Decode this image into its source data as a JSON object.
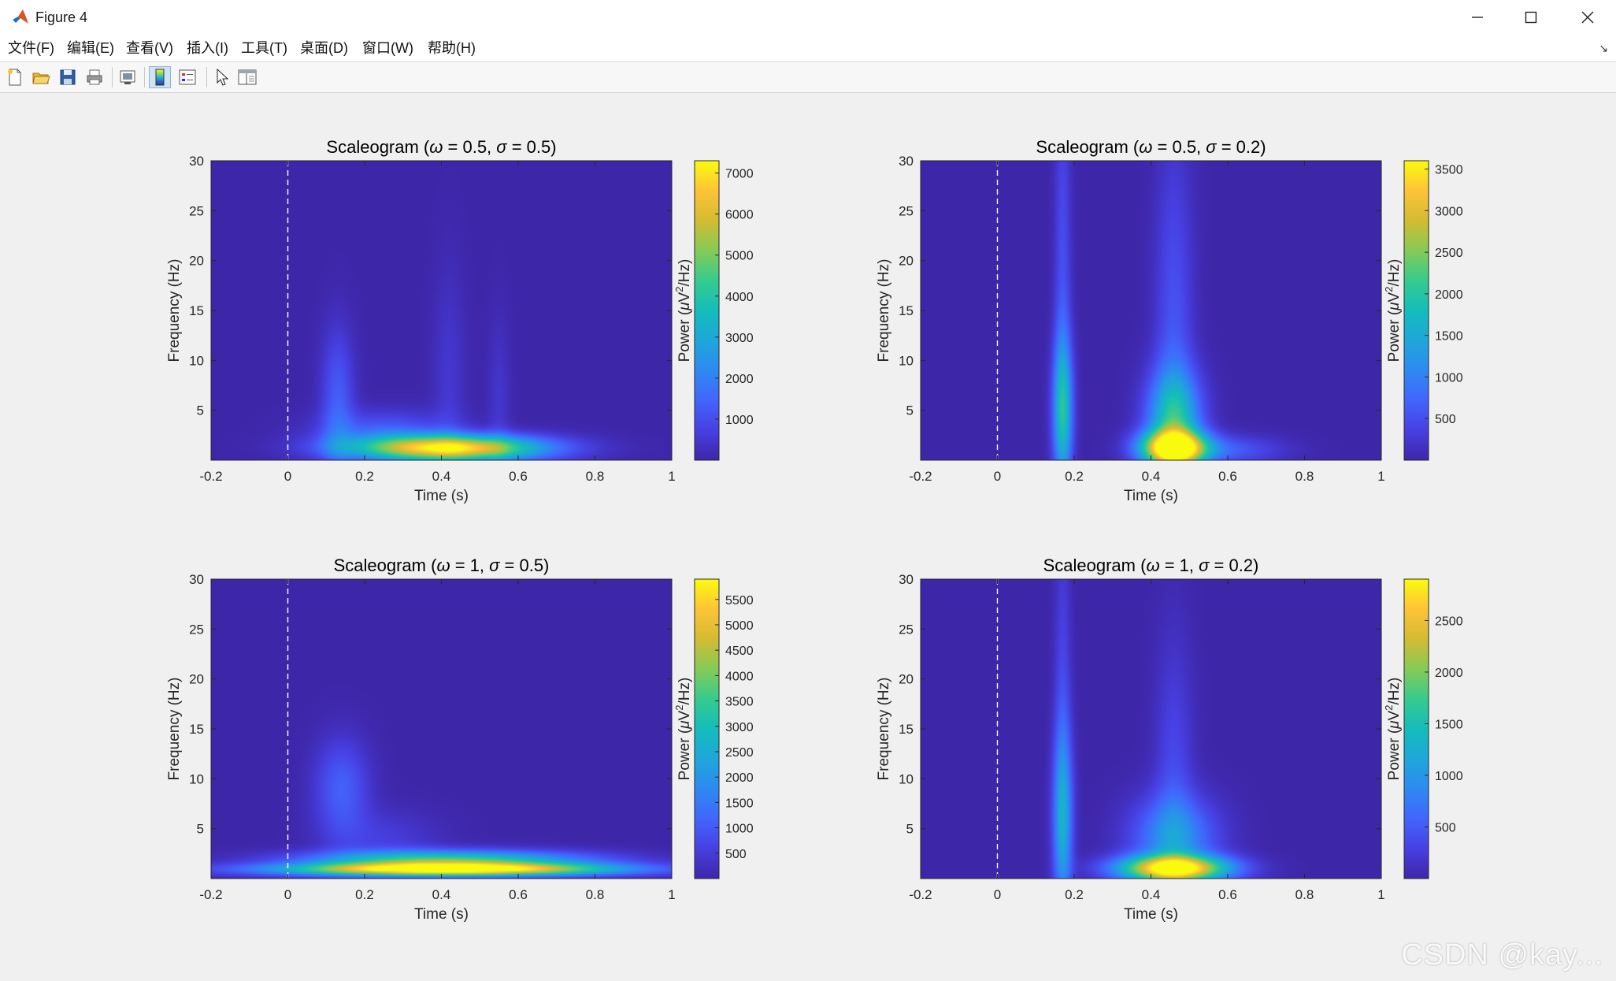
{
  "window": {
    "title": "Figure 4"
  },
  "menu": [
    {
      "id": "file",
      "label": "文件(F)"
    },
    {
      "id": "edit",
      "label": "编辑(E)"
    },
    {
      "id": "view",
      "label": "查看(V)"
    },
    {
      "id": "insert",
      "label": "插入(I)"
    },
    {
      "id": "tools",
      "label": "工具(T)"
    },
    {
      "id": "desktop",
      "label": "桌面(D)"
    },
    {
      "id": "window",
      "label": "窗口(W)"
    },
    {
      "id": "help",
      "label": "帮助(H)"
    }
  ],
  "toolbar": [
    {
      "id": "new-figure",
      "icon": "new-file-icon"
    },
    {
      "id": "open-file",
      "icon": "open-folder-icon"
    },
    {
      "id": "save-figure",
      "icon": "save-icon"
    },
    {
      "id": "print-figure",
      "icon": "print-icon"
    },
    {
      "id": "link-plot",
      "icon": "link-plot-icon"
    },
    {
      "id": "insert-colorbar",
      "icon": "colorbar-icon",
      "active": true
    },
    {
      "id": "insert-legend",
      "icon": "legend-icon"
    },
    {
      "id": "edit-plot",
      "icon": "arrow-cursor-icon"
    },
    {
      "id": "property-inspector",
      "icon": "panel-icon"
    }
  ],
  "watermark": "CSDN @kay...",
  "chart_data": [
    {
      "type": "heatmap",
      "title_prefix": "Scaleogram (",
      "omega_symbol": "ω",
      "omega": "0.5",
      "sigma_symbol": "σ",
      "sigma": "0.5",
      "xlabel": "Time (s)",
      "ylabel": "Frequency (Hz)",
      "xlim": [
        -0.2,
        1
      ],
      "ylim": [
        0,
        30
      ],
      "xticks": [
        "-0.2",
        "0",
        "0.2",
        "0.4",
        "0.6",
        "0.8",
        "1"
      ],
      "yticks": [
        "5",
        "10",
        "15",
        "20",
        "25",
        "30"
      ],
      "stimulus_onset": 0,
      "colorbar": {
        "label_prefix": "Power (",
        "mu": "μ",
        "unit_base": "V",
        "sup": "2",
        "unit_tail": "/Hz)",
        "ticks": [
          1000,
          2000,
          3000,
          4000,
          5000,
          6000,
          7000
        ],
        "min": 0,
        "max": 7300,
        "colormap": "parula"
      },
      "features": [
        {
          "t": 0.42,
          "f": 1.2,
          "power": 7100,
          "t_spread": 0.17,
          "f_spread": 0.9
        },
        {
          "t": 0.25,
          "f": 2.8,
          "power": 1300,
          "t_spread": 0.12,
          "f_spread": 1.5
        },
        {
          "t": 0.13,
          "f": 6,
          "power": 1300,
          "t_spread": 0.03,
          "f_spread": 5
        },
        {
          "t": 0.42,
          "f": 8,
          "power": 500,
          "t_spread": 0.03,
          "f_spread": 8
        },
        {
          "t": 0.55,
          "f": 6,
          "power": 450,
          "t_spread": 0.02,
          "f_spread": 6
        }
      ]
    },
    {
      "type": "heatmap",
      "title_prefix": "Scaleogram (",
      "omega_symbol": "ω",
      "omega": "0.5",
      "sigma_symbol": "σ",
      "sigma": "0.2",
      "xlabel": "Time (s)",
      "ylabel": "Frequency (Hz)",
      "xlim": [
        -0.2,
        1
      ],
      "ylim": [
        0,
        30
      ],
      "xticks": [
        "-0.2",
        "0",
        "0.2",
        "0.4",
        "0.6",
        "0.8",
        "1"
      ],
      "yticks": [
        "5",
        "10",
        "15",
        "20",
        "25",
        "30"
      ],
      "stimulus_onset": 0,
      "colorbar": {
        "label_prefix": "Power (",
        "mu": "μ",
        "unit_base": "V",
        "sup": "2",
        "unit_tail": "/Hz)",
        "ticks": [
          500,
          1000,
          1500,
          2000,
          2500,
          3000,
          3500
        ],
        "min": 0,
        "max": 3600,
        "colormap": "parula"
      },
      "features": [
        {
          "t": 0.46,
          "f": 1.2,
          "power": 3500,
          "t_spread": 0.06,
          "f_spread": 1.2
        },
        {
          "t": 0.46,
          "f": 4,
          "power": 1700,
          "t_spread": 0.05,
          "f_spread": 3.5
        },
        {
          "t": 0.46,
          "f": 12,
          "power": 550,
          "t_spread": 0.035,
          "f_spread": 14
        },
        {
          "t": 0.17,
          "f": 5,
          "power": 1700,
          "t_spread": 0.018,
          "f_spread": 5
        },
        {
          "t": 0.17,
          "f": 18,
          "power": 500,
          "t_spread": 0.015,
          "f_spread": 15
        },
        {
          "t": 0.6,
          "f": 1,
          "power": 600,
          "t_spread": 0.1,
          "f_spread": 1
        }
      ]
    },
    {
      "type": "heatmap",
      "title_prefix": "Scaleogram (",
      "omega_symbol": "ω",
      "omega": "1",
      "sigma_symbol": "σ",
      "sigma": "0.5",
      "xlabel": "Time (s)",
      "ylabel": "Frequency (Hz)",
      "xlim": [
        -0.2,
        1
      ],
      "ylim": [
        0,
        30
      ],
      "xticks": [
        "-0.2",
        "0",
        "0.2",
        "0.4",
        "0.6",
        "0.8",
        "1"
      ],
      "yticks": [
        "5",
        "10",
        "15",
        "20",
        "25",
        "30"
      ],
      "stimulus_onset": 0,
      "colorbar": {
        "label_prefix": "Power (",
        "mu": "μ",
        "unit_base": "V",
        "sup": "2",
        "unit_tail": "/Hz)",
        "ticks": [
          500,
          1000,
          1500,
          2000,
          2500,
          3000,
          3500,
          4000,
          4500,
          5000,
          5500
        ],
        "min": 0,
        "max": 5900,
        "colormap": "parula"
      },
      "features": [
        {
          "t": 0.42,
          "f": 0.9,
          "power": 5800,
          "t_spread": 0.3,
          "f_spread": 0.45
        },
        {
          "t": 0.42,
          "f": 1.8,
          "power": 3500,
          "t_spread": 0.25,
          "f_spread": 0.7
        },
        {
          "t": 0.14,
          "f": 9,
          "power": 1100,
          "t_spread": 0.05,
          "f_spread": 3.5
        },
        {
          "t": 0.25,
          "f": 4,
          "power": 500,
          "t_spread": 0.1,
          "f_spread": 2
        }
      ]
    },
    {
      "type": "heatmap",
      "title_prefix": "Scaleogram (",
      "omega_symbol": "ω",
      "omega": "1",
      "sigma_symbol": "σ",
      "sigma": "0.2",
      "xlabel": "Time (s)",
      "ylabel": "Frequency (Hz)",
      "xlim": [
        -0.2,
        1
      ],
      "ylim": [
        0,
        30
      ],
      "xticks": [
        "-0.2",
        "0",
        "0.2",
        "0.4",
        "0.6",
        "0.8",
        "1"
      ],
      "yticks": [
        "5",
        "10",
        "15",
        "20",
        "25",
        "30"
      ],
      "stimulus_onset": 0,
      "colorbar": {
        "label_prefix": "Power (",
        "mu": "μ",
        "unit_base": "V",
        "sup": "2",
        "unit_tail": "/Hz)",
        "ticks": [
          500,
          1000,
          1500,
          2000,
          2500
        ],
        "min": 0,
        "max": 2900,
        "colormap": "parula"
      },
      "features": [
        {
          "t": 0.46,
          "f": 1.0,
          "power": 2850,
          "t_spread": 0.1,
          "f_spread": 0.9
        },
        {
          "t": 0.46,
          "f": 4,
          "power": 900,
          "t_spread": 0.08,
          "f_spread": 3
        },
        {
          "t": 0.46,
          "f": 10,
          "power": 350,
          "t_spread": 0.035,
          "f_spread": 10
        },
        {
          "t": 0.17,
          "f": 6,
          "power": 1050,
          "t_spread": 0.018,
          "f_spread": 6
        },
        {
          "t": 0.17,
          "f": 16,
          "power": 350,
          "t_spread": 0.015,
          "f_spread": 14
        }
      ]
    }
  ]
}
